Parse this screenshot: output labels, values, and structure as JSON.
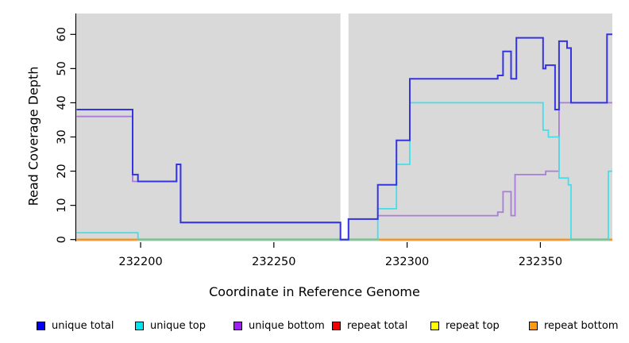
{
  "chart_data": {
    "type": "line",
    "subtype": "step-after",
    "title": "",
    "xlabel": "Coordinate in Reference Genome",
    "ylabel": "Read Coverage Depth",
    "xlim": [
      232176,
      232377
    ],
    "ylim": [
      0,
      66
    ],
    "x_ticks": [
      232200,
      232250,
      232300,
      232350
    ],
    "y_ticks": [
      0,
      10,
      20,
      30,
      40,
      50,
      60
    ],
    "grid": false,
    "plot_bg_color": "#D9D9D9",
    "gap_band": {
      "x0": 232275,
      "x1": 232278,
      "color": "#FFFFFF"
    },
    "baseline_overlay": {
      "comment": "0-coverage baseline appears green where unique-top sits at 0 over the repeat lines",
      "color": "#76C391",
      "segments": [
        [
          232199,
          232275
        ],
        [
          232278,
          232289
        ],
        [
          232361.5,
          232375.5
        ]
      ]
    },
    "series": [
      {
        "name": "repeat total",
        "color": "#DD0000",
        "steps": [
          [
            232176,
            0
          ]
        ]
      },
      {
        "name": "repeat top",
        "color": "#FFFF00",
        "steps": [
          [
            232176,
            0
          ]
        ]
      },
      {
        "name": "repeat bottom",
        "color": "#FF8C1A",
        "steps": [
          [
            232176,
            0
          ]
        ]
      },
      {
        "name": "unique bottom",
        "color": "#AB7BDA",
        "steps": [
          [
            232176,
            36
          ],
          [
            232197,
            17
          ],
          [
            232213.5,
            22
          ],
          [
            232215,
            5
          ],
          [
            232275,
            0
          ],
          [
            232278,
            6
          ],
          [
            232289,
            7
          ],
          [
            232334,
            8
          ],
          [
            232336,
            14
          ],
          [
            232339,
            7
          ],
          [
            232340.5,
            19
          ],
          [
            232352,
            20
          ],
          [
            232357,
            40
          ]
        ]
      },
      {
        "name": "unique top",
        "color": "#45DEE8",
        "steps": [
          [
            232176,
            2
          ],
          [
            232199,
            0
          ],
          [
            232289,
            9
          ],
          [
            232296,
            22
          ],
          [
            232301,
            40
          ],
          [
            232351,
            32
          ],
          [
            232353,
            30
          ],
          [
            232357,
            18
          ],
          [
            232360.5,
            16
          ],
          [
            232361.5,
            0
          ],
          [
            232375.5,
            20
          ]
        ]
      },
      {
        "name": "unique total",
        "color": "#3434E2",
        "steps": [
          [
            232176,
            38
          ],
          [
            232197,
            19
          ],
          [
            232199,
            17
          ],
          [
            232213.5,
            22
          ],
          [
            232215,
            5
          ],
          [
            232275,
            0
          ],
          [
            232278,
            6
          ],
          [
            232289,
            16
          ],
          [
            232296,
            29
          ],
          [
            232301,
            47
          ],
          [
            232334,
            48
          ],
          [
            232336,
            55
          ],
          [
            232339,
            47
          ],
          [
            232341,
            59
          ],
          [
            232351,
            50
          ],
          [
            232352,
            51
          ],
          [
            232355.5,
            38
          ],
          [
            232357,
            58
          ],
          [
            232360,
            56
          ],
          [
            232361.5,
            40
          ],
          [
            232375,
            60
          ]
        ]
      }
    ]
  },
  "legend": {
    "items": [
      {
        "label": "unique total",
        "color": "#0000EE"
      },
      {
        "label": "unique top",
        "color": "#00E5EE"
      },
      {
        "label": "unique bottom",
        "color": "#A020F0"
      },
      {
        "label": "repeat total",
        "color": "#EE0000"
      },
      {
        "label": "repeat top",
        "color": "#FFFF00"
      },
      {
        "label": "repeat bottom",
        "color": "#FF9912"
      }
    ]
  }
}
